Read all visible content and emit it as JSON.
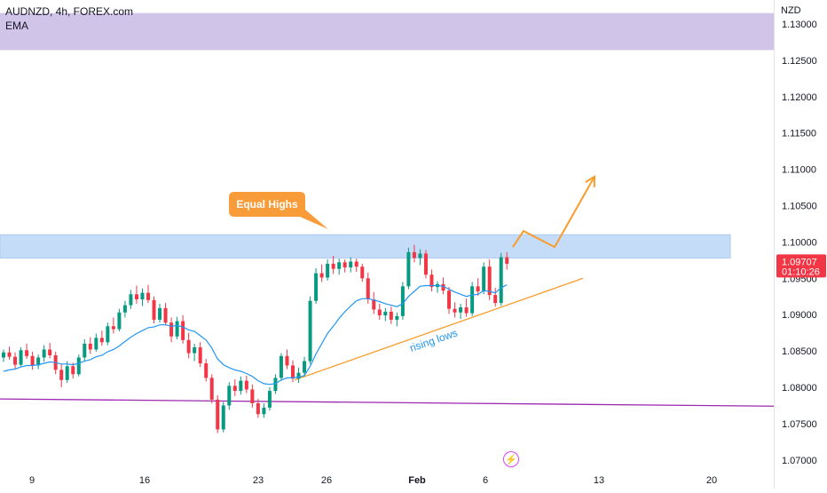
{
  "header": {
    "symbol": "AUDNZD, 4h, FOREX.com",
    "indicator": "EMA"
  },
  "axis": {
    "currency": "NZD",
    "y_ticks": [
      "1.13000",
      "1.12500",
      "1.12000",
      "1.11500",
      "1.11000",
      "1.10500",
      "1.10000",
      "1.09500",
      "1.09000",
      "1.08500",
      "1.08000",
      "1.07500",
      "1.07000"
    ],
    "x_ticks": [
      "9",
      "16",
      "23",
      "26",
      "Feb",
      "6",
      "13",
      "20"
    ]
  },
  "price_tag": {
    "price": "1.09707",
    "countdown": "01:10:26",
    "color": "#f23645"
  },
  "annotations": {
    "equal_highs": "Equal Highs",
    "rising_lows": "rising lows"
  },
  "colors": {
    "up": "#089981",
    "down": "#f23645",
    "ema": "#2196f3",
    "trendline": "#f89c2b",
    "purple_line": "#9c27b0",
    "supply_zone": "#d1c4e9",
    "resistance_zone": "#c5dcf8",
    "callout": "#f89c3a"
  },
  "icons": {
    "badge": "lightning-icon"
  },
  "chart_data": {
    "type": "candlestick",
    "timeframe": "4h",
    "symbol": "AUDNZD",
    "y_range": [
      1.0695,
      1.132
    ],
    "zones": [
      {
        "name": "upper supply zone",
        "y_low": 1.1264,
        "y_high": 1.1315
      },
      {
        "name": "resistance zone",
        "y_low": 1.0978,
        "y_high": 1.101
      }
    ],
    "last_price": 1.09707,
    "candles": [
      [
        1.0841,
        1.0852,
        1.0835,
        1.0848
      ],
      [
        1.0848,
        1.0856,
        1.0838,
        1.0842
      ],
      [
        1.0842,
        1.0848,
        1.0826,
        1.0831
      ],
      [
        1.0831,
        1.0855,
        1.0829,
        1.0851
      ],
      [
        1.0851,
        1.086,
        1.0839,
        1.0843
      ],
      [
        1.0843,
        1.0849,
        1.0824,
        1.083
      ],
      [
        1.083,
        1.0845,
        1.0825,
        1.0841
      ],
      [
        1.0841,
        1.0858,
        1.0835,
        1.0852
      ],
      [
        1.0852,
        1.0861,
        1.084,
        1.0844
      ],
      [
        1.0844,
        1.0849,
        1.0818,
        1.0824
      ],
      [
        1.0824,
        1.0832,
        1.08,
        1.081
      ],
      [
        1.081,
        1.0836,
        1.0806,
        1.0829
      ],
      [
        1.0829,
        1.0834,
        1.0812,
        1.0818
      ],
      [
        1.0818,
        1.0845,
        1.0815,
        1.0841
      ],
      [
        1.0841,
        1.0866,
        1.0836,
        1.086
      ],
      [
        1.086,
        1.0869,
        1.0846,
        1.0852
      ],
      [
        1.0852,
        1.0874,
        1.0849,
        1.0868
      ],
      [
        1.0868,
        1.0878,
        1.0857,
        1.0862
      ],
      [
        1.0862,
        1.0889,
        1.0858,
        1.0884
      ],
      [
        1.0884,
        1.0896,
        1.0874,
        1.088
      ],
      [
        1.088,
        1.0908,
        1.0877,
        1.0903
      ],
      [
        1.0903,
        1.0919,
        1.0896,
        1.0913
      ],
      [
        1.0913,
        1.0934,
        1.0908,
        1.0928
      ],
      [
        1.0928,
        1.094,
        1.0915,
        1.0921
      ],
      [
        1.0921,
        1.0936,
        1.0912,
        1.093
      ],
      [
        1.093,
        1.0941,
        1.0916,
        1.092
      ],
      [
        1.092,
        1.0925,
        1.0888,
        1.0893
      ],
      [
        1.0893,
        1.0915,
        1.0889,
        1.0909
      ],
      [
        1.0909,
        1.0916,
        1.0885,
        1.0889
      ],
      [
        1.0889,
        1.0896,
        1.0862,
        1.087
      ],
      [
        1.087,
        1.0897,
        1.0866,
        1.0891
      ],
      [
        1.0891,
        1.0899,
        1.086,
        1.0865
      ],
      [
        1.0865,
        1.0875,
        1.084,
        1.0847
      ],
      [
        1.0847,
        1.086,
        1.0836,
        1.0855
      ],
      [
        1.0855,
        1.0862,
        1.0828,
        1.0833
      ],
      [
        1.0833,
        1.0839,
        1.0808,
        1.0813
      ],
      [
        1.0813,
        1.0818,
        1.0778,
        1.0783
      ],
      [
        1.0783,
        1.0789,
        1.0737,
        1.0742
      ],
      [
        1.0742,
        1.078,
        1.0738,
        1.0775
      ],
      [
        1.0775,
        1.0807,
        1.0769,
        1.0802
      ],
      [
        1.0802,
        1.0811,
        1.0788,
        1.0795
      ],
      [
        1.0795,
        1.0815,
        1.079,
        1.0809
      ],
      [
        1.0809,
        1.0816,
        1.0792,
        1.0797
      ],
      [
        1.0797,
        1.0804,
        1.0772,
        1.0778
      ],
      [
        1.0778,
        1.0784,
        1.0758,
        1.0763
      ],
      [
        1.0763,
        1.0778,
        1.0758,
        1.0772
      ],
      [
        1.0772,
        1.08,
        1.0768,
        1.0795
      ],
      [
        1.0795,
        1.0818,
        1.0791,
        1.0813
      ],
      [
        1.0813,
        1.0847,
        1.0809,
        1.0843
      ],
      [
        1.0843,
        1.0852,
        1.0825,
        1.083
      ],
      [
        1.083,
        1.0837,
        1.0807,
        1.0812
      ],
      [
        1.0812,
        1.0827,
        1.0806,
        1.082
      ],
      [
        1.082,
        1.0842,
        1.0815,
        1.0836
      ],
      [
        1.0836,
        1.0925,
        1.0832,
        1.0919
      ],
      [
        1.0919,
        1.0964,
        1.0915,
        1.0957
      ],
      [
        1.0957,
        1.0969,
        1.0945,
        1.0951
      ],
      [
        1.0951,
        1.0976,
        1.0947,
        1.097
      ],
      [
        1.097,
        1.0981,
        1.0956,
        1.0963
      ],
      [
        1.0963,
        1.0977,
        1.0955,
        1.0972
      ],
      [
        1.0972,
        1.0976,
        1.0958,
        1.0965
      ],
      [
        1.0965,
        1.0979,
        1.0958,
        1.0973
      ],
      [
        1.0973,
        1.0977,
        1.0959,
        1.0966
      ],
      [
        1.0966,
        1.097,
        1.0945,
        1.095
      ],
      [
        1.095,
        1.0958,
        1.0915,
        1.0921
      ],
      [
        1.0921,
        1.0931,
        1.0901,
        1.0907
      ],
      [
        1.0907,
        1.0915,
        1.0893,
        1.0899
      ],
      [
        1.0899,
        1.0909,
        1.0891,
        1.0904
      ],
      [
        1.0904,
        1.0911,
        1.0887,
        1.0893
      ],
      [
        1.0893,
        1.0903,
        1.0884,
        1.0898
      ],
      [
        1.0898,
        1.0945,
        1.0893,
        1.0939
      ],
      [
        1.0939,
        1.0992,
        1.0935,
        1.0986
      ],
      [
        1.0986,
        1.0996,
        1.0972,
        1.0978
      ],
      [
        1.0978,
        1.099,
        1.0968,
        1.0984
      ],
      [
        1.0984,
        1.0989,
        1.095,
        1.0955
      ],
      [
        1.0955,
        1.0962,
        1.0932,
        1.0938
      ],
      [
        1.0938,
        1.0946,
        1.093,
        1.0942
      ],
      [
        1.0942,
        1.0951,
        1.0928,
        1.0933
      ],
      [
        1.0933,
        1.0938,
        1.0901,
        1.0908
      ],
      [
        1.0908,
        1.0917,
        1.0896,
        1.0903
      ],
      [
        1.0903,
        1.0915,
        1.0894,
        1.091
      ],
      [
        1.091,
        1.0922,
        1.0897,
        1.0902
      ],
      [
        1.0902,
        1.0945,
        1.0898,
        1.0939
      ],
      [
        1.0939,
        1.095,
        1.0926,
        1.0932
      ],
      [
        1.0932,
        1.0972,
        1.0928,
        1.0966
      ],
      [
        1.0966,
        1.0976,
        1.092,
        1.0927
      ],
      [
        1.0927,
        1.0937,
        1.0911,
        1.0916
      ],
      [
        1.0916,
        1.0985,
        1.0912,
        1.0979
      ],
      [
        1.0979,
        1.0986,
        1.0962,
        1.097
      ]
    ],
    "ema": [
      1.0822,
      1.0824,
      1.0825,
      1.0828,
      1.083,
      1.083,
      1.0831,
      1.0833,
      1.0835,
      1.0834,
      1.0832,
      1.0832,
      1.0831,
      1.0833,
      1.0836,
      1.0838,
      1.0842,
      1.0844,
      1.0849,
      1.0852,
      1.0857,
      1.0863,
      1.0869,
      1.0874,
      1.0878,
      1.0882,
      1.0883,
      1.0886,
      1.0886,
      1.0884,
      1.0885,
      1.0883,
      1.0879,
      1.0877,
      1.0871,
      1.0865,
      1.0854,
      1.0839,
      1.0831,
      1.0827,
      1.0824,
      1.0822,
      1.0819,
      1.0815,
      1.0809,
      1.0805,
      1.0804,
      1.0805,
      1.081,
      1.0813,
      1.0813,
      1.0814,
      1.0816,
      1.0829,
      1.0846,
      1.086,
      1.0874,
      1.0884,
      1.0895,
      1.0904,
      1.0912,
      1.0919,
      1.0922,
      1.0922,
      1.092,
      1.0918,
      1.0915,
      1.0913,
      1.0911,
      1.0915,
      1.0925,
      1.0932,
      1.0939,
      1.094,
      1.094,
      1.094,
      1.0939,
      1.0935,
      1.0931,
      1.0928,
      1.0925,
      1.0927,
      1.0928,
      1.0933,
      1.0932,
      1.093,
      1.0937,
      1.0941
    ],
    "lines": [
      {
        "name": "horizontal level",
        "from": [
          0,
          1.0784
        ],
        "to": [
          872,
          1.0774
        ]
      },
      {
        "name": "rising lows trendline",
        "from": [
          332,
          1.081
        ],
        "to": [
          657,
          1.095
        ]
      }
    ],
    "projection_path": [
      [
        578,
        1.0993
      ],
      [
        590,
        1.1015
      ],
      [
        625,
        1.0993
      ],
      [
        670,
        1.109
      ]
    ]
  }
}
